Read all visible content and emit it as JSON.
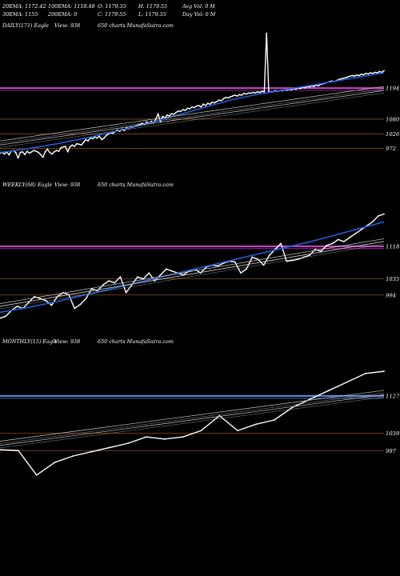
{
  "header": {
    "row1": [
      "20EMA: 1172.42",
      "100EMA: 1118.48",
      "O: 1179.55",
      "H: 1179.55",
      "Avg Vol: 0  M"
    ],
    "row2": [
      "30EMA: 1155",
      "200EMA: 0",
      "C: 1179.55",
      "L: 1179.55",
      "Day Vol: 0  M"
    ]
  },
  "panels": [
    {
      "id": "daily",
      "caption_prefix": "DAILY(171) Eagle",
      "caption_view": "View: 938",
      "caption_charts": "650  charts MunafaSutra.com"
    },
    {
      "id": "weekly",
      "caption_prefix": "WEEKLY(68) Eagle",
      "caption_view": "View: 938",
      "caption_charts": "650  charts MunafaSutra.com"
    },
    {
      "id": "monthly",
      "caption_prefix": "MONTHLY(15) Eagle",
      "caption_view": "View: 938",
      "caption_charts": "650  charts MunafaSutra.com"
    }
  ],
  "colors": {
    "background": "#000000",
    "price": "#ffffff",
    "ema_blue": "#1f5fd6",
    "ema_thin": "#c8c8c8",
    "resistance_magenta": "#cc44cc",
    "resistance_blue": "#5b8de0",
    "support_brown": "#8a4a1c",
    "level_text": "#ffffff"
  },
  "chart_data": [
    {
      "type": "line",
      "title": "DAILY(171) Eagle",
      "levels": [
        1194,
        1080,
        1026,
        972
      ],
      "level_labels": [
        "1194",
        "1080",
        "1026",
        "972"
      ],
      "ylim": [
        930,
        1400
      ],
      "series": [
        {
          "values": [
            955,
            958,
            952,
            960,
            949,
            963,
            965,
            957,
            937,
            958,
            960,
            950,
            962,
            955,
            960,
            965,
            962,
            958,
            950,
            940,
            960,
            970,
            958,
            952,
            960,
            965,
            962,
            975,
            978,
            980,
            960,
            978,
            985,
            980,
            990,
            988,
            985,
            995,
            1005,
            1000,
            1012,
            1008,
            1015,
            1010,
            1018,
            1005,
            1010,
            1020,
            1025,
            1030,
            1028,
            1035,
            1040,
            1035,
            1043,
            1038,
            1048,
            1045,
            1052,
            1050,
            1055,
            1058,
            1060,
            1065,
            1060,
            1070,
            1065,
            1072,
            1068,
            1080,
            1100,
            1070,
            1090,
            1085,
            1095,
            1092,
            1100,
            1098,
            1105,
            1110,
            1108,
            1115,
            1112,
            1120,
            1118,
            1125,
            1122,
            1128,
            1130,
            1125,
            1135,
            1130,
            1138,
            1135,
            1142,
            1140,
            1145,
            1150,
            1148,
            1155,
            1160,
            1158,
            1162,
            1165,
            1168,
            1165,
            1170,
            1168,
            1175,
            1172,
            1176,
            1175,
            1178,
            1176,
            1180,
            1178,
            1182,
            1180,
            1395,
            1180,
            1180,
            1180,
            1185,
            1182,
            1186,
            1184,
            1188,
            1186,
            1190,
            1188,
            1192,
            1190,
            1195,
            1192,
            1198,
            1195,
            1200,
            1198,
            1202,
            1200,
            1205,
            1202,
            1208,
            1210,
            1212,
            1215,
            1218,
            1220,
            1218,
            1222,
            1225,
            1228,
            1230,
            1232,
            1235,
            1238,
            1240,
            1238,
            1242,
            1240,
            1245,
            1243,
            1248,
            1246,
            1250,
            1248,
            1252,
            1250,
            1255,
            1252,
            1258
          ]
        },
        {
          "values": [
            958,
            962,
            967,
            972,
            978,
            984,
            990,
            997,
            1004,
            1011,
            1019,
            1027,
            1035,
            1043,
            1052,
            1061,
            1070,
            1080,
            1090,
            1100,
            1110,
            1120,
            1130,
            1140,
            1150,
            1158,
            1165,
            1172,
            1178,
            1184,
            1190,
            1196,
            1202,
            1208,
            1214,
            1220,
            1226,
            1232,
            1238,
            1244,
            1250
          ]
        },
        {
          "values": [
            1000,
            1005,
            1010,
            1015,
            1020,
            1025,
            1030,
            1035,
            1040,
            1045,
            1050,
            1055,
            1060,
            1065,
            1070,
            1075,
            1080,
            1085,
            1090,
            1095,
            1100,
            1105,
            1110,
            1115,
            1120,
            1125,
            1130,
            1135,
            1140,
            1145,
            1150,
            1155,
            1160,
            1165,
            1170,
            1175,
            1180,
            1185,
            1190,
            1195,
            1200
          ]
        },
        {
          "values": [
            985,
            990,
            995,
            1000,
            1005,
            1010,
            1015,
            1020,
            1025,
            1030,
            1035,
            1040,
            1045,
            1050,
            1055,
            1060,
            1065,
            1070,
            1075,
            1080,
            1085,
            1090,
            1095,
            1100,
            1105,
            1110,
            1115,
            1120,
            1125,
            1130,
            1135,
            1140,
            1145,
            1150,
            1155,
            1160,
            1165,
            1170,
            1175,
            1180,
            1185
          ]
        }
      ]
    },
    {
      "type": "line",
      "title": "WEEKLY(68) Eagle",
      "levels": [
        1118,
        1035,
        994
      ],
      "level_labels": [
        "1118",
        "1035",
        "994"
      ],
      "ylim": [
        900,
        1260
      ],
      "series": [
        {
          "values": [
            935,
            940,
            955,
            965,
            960,
            975,
            990,
            985,
            980,
            968,
            990,
            1000,
            995,
            960,
            970,
            985,
            1010,
            1005,
            1020,
            1030,
            1025,
            1040,
            1000,
            1020,
            1040,
            1035,
            1050,
            1030,
            1045,
            1060,
            1055,
            1050,
            1045,
            1055,
            1060,
            1050,
            1065,
            1070,
            1068,
            1075,
            1080,
            1078,
            1050,
            1060,
            1090,
            1085,
            1070,
            1095,
            1110,
            1125,
            1080,
            1082,
            1085,
            1090,
            1095,
            1110,
            1105,
            1120,
            1125,
            1135,
            1130,
            1140,
            1150,
            1160,
            1170,
            1180,
            1195,
            1200
          ]
        },
        {
          "values": [
            950,
            955,
            960,
            966,
            972,
            978,
            985,
            992,
            999,
            1006,
            1013,
            1020,
            1027,
            1034,
            1041,
            1048,
            1055,
            1062,
            1069,
            1076,
            1083,
            1090,
            1097,
            1104,
            1111,
            1118,
            1125,
            1132,
            1140,
            1148,
            1156,
            1164,
            1172,
            1180
          ]
        },
        {
          "values": [
            972,
            977,
            982,
            987,
            992,
            997,
            1002,
            1007,
            1012,
            1017,
            1022,
            1027,
            1032,
            1037,
            1042,
            1047,
            1052,
            1057,
            1062,
            1067,
            1072,
            1077,
            1082,
            1087,
            1092,
            1097,
            1102,
            1107,
            1112,
            1117,
            1122,
            1127,
            1132,
            1137
          ]
        },
        {
          "values": [
            965,
            970,
            975,
            980,
            985,
            990,
            995,
            1000,
            1005,
            1010,
            1015,
            1020,
            1025,
            1030,
            1035,
            1040,
            1045,
            1050,
            1055,
            1060,
            1065,
            1070,
            1075,
            1080,
            1085,
            1090,
            1095,
            1100,
            1105,
            1110,
            1115,
            1120,
            1125,
            1130
          ]
        }
      ]
    },
    {
      "type": "line",
      "title": "MONTHLY(15) Eagle",
      "levels": [
        1127,
        1039,
        997
      ],
      "level_labels": [
        "1127",
        "1039",
        "997"
      ],
      "ylim": [
        900,
        1240
      ],
      "series": [
        {
          "values": [
            1000,
            998,
            940,
            970,
            985,
            995,
            1005,
            1015,
            1030,
            1025,
            1030,
            1045,
            1080,
            1045,
            1060,
            1070,
            1100,
            1120,
            1140,
            1160,
            1180,
            1185
          ]
        },
        {
          "values": [
            1020,
            1028,
            1036,
            1044,
            1052,
            1060,
            1068,
            1076,
            1084,
            1092,
            1100,
            1108,
            1116,
            1124,
            1132,
            1140
          ]
        },
        {
          "values": [
            1010,
            1018,
            1026,
            1034,
            1042,
            1050,
            1058,
            1066,
            1074,
            1082,
            1090,
            1098,
            1106,
            1114,
            1122,
            1130
          ]
        }
      ]
    }
  ]
}
